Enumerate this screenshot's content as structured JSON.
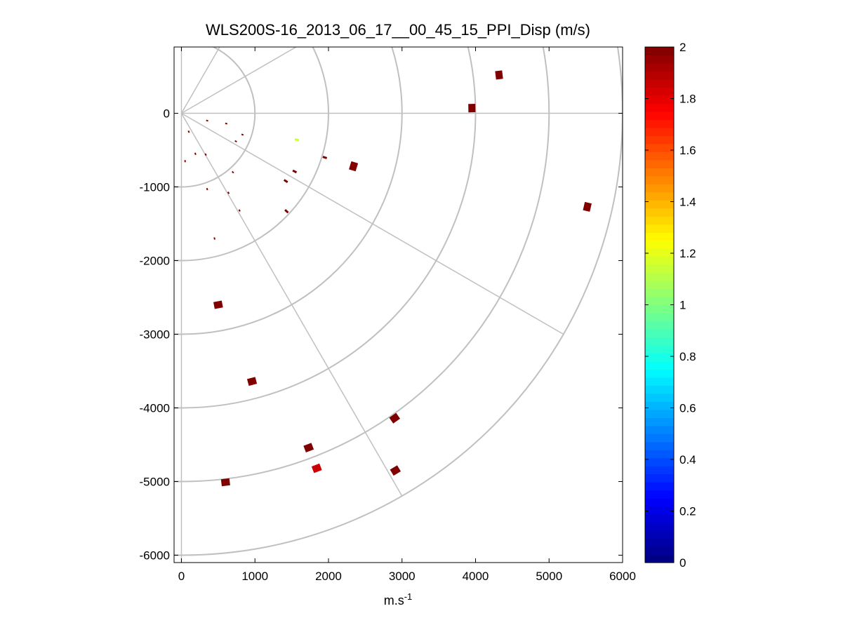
{
  "chart_data": {
    "type": "scatter",
    "title": "WLS200S-16_2013_06_17__00_45_15_PPI_Disp (m/s)",
    "xlabel": "m.s",
    "xlabel_superscript": "-1",
    "ylabel": "",
    "xlim": [
      -100,
      6000
    ],
    "ylim": [
      -6100,
      900
    ],
    "x_ticks": [
      0,
      1000,
      2000,
      3000,
      4000,
      5000,
      6000
    ],
    "x_tick_labels": [
      "0",
      "1000",
      "2000",
      "3000",
      "4000",
      "5000",
      "6000"
    ],
    "y_ticks": [
      0,
      -1000,
      -2000,
      -3000,
      -4000,
      -5000,
      -6000
    ],
    "y_tick_labels": [
      "0",
      "-1000",
      "-2000",
      "-3000",
      "-4000",
      "-5000",
      "-6000"
    ],
    "polar_grid": {
      "origin": [
        0,
        0
      ],
      "range_rings": [
        1000,
        2000,
        3000,
        4000,
        5000,
        6000
      ],
      "spokes_deg": [
        60,
        30,
        0,
        -30,
        -60
      ]
    },
    "colorbar": {
      "min": 0,
      "max": 2,
      "ticks": [
        0,
        0.2,
        0.4,
        0.6,
        0.8,
        1,
        1.2,
        1.4,
        1.6,
        1.8,
        2
      ],
      "tick_labels": [
        "0",
        "0.2",
        "0.4",
        "0.6",
        "0.8",
        "1",
        "1.2",
        "1.4",
        "1.6",
        "1.8",
        "2"
      ],
      "colormap": "jet",
      "position": "right"
    },
    "colors": {
      "grid": "#c0c0c0",
      "axes": "#000000",
      "background": "#ffffff"
    },
    "points": [
      {
        "x": 4320,
        "y": 520,
        "value": 2.0,
        "size": "large"
      },
      {
        "x": 3950,
        "y": 70,
        "value": 2.0,
        "size": "large"
      },
      {
        "x": 2340,
        "y": -720,
        "value": 2.0,
        "size": "large"
      },
      {
        "x": 1950,
        "y": -600,
        "value": 2.0,
        "size": "small"
      },
      {
        "x": 1570,
        "y": -360,
        "value": 1.15,
        "size": "small"
      },
      {
        "x": 1540,
        "y": -790,
        "value": 2.0,
        "size": "small"
      },
      {
        "x": 1420,
        "y": -920,
        "value": 2.0,
        "size": "small"
      },
      {
        "x": 1430,
        "y": -1330,
        "value": 2.0,
        "size": "small"
      },
      {
        "x": 5520,
        "y": -1270,
        "value": 2.0,
        "size": "large"
      },
      {
        "x": 830,
        "y": -290,
        "value": 2.0,
        "size": "tiny"
      },
      {
        "x": 740,
        "y": -380,
        "value": 2.0,
        "size": "tiny"
      },
      {
        "x": 610,
        "y": -140,
        "value": 1.95,
        "size": "tiny"
      },
      {
        "x": 350,
        "y": -100,
        "value": 2.0,
        "size": "tiny"
      },
      {
        "x": 100,
        "y": -250,
        "value": 2.0,
        "size": "tiny"
      },
      {
        "x": 330,
        "y": -560,
        "value": 2.0,
        "size": "tiny"
      },
      {
        "x": 190,
        "y": -550,
        "value": 2.0,
        "size": "tiny"
      },
      {
        "x": 50,
        "y": -650,
        "value": 1.95,
        "size": "tiny"
      },
      {
        "x": 700,
        "y": -800,
        "value": 2.0,
        "size": "tiny"
      },
      {
        "x": 640,
        "y": -1080,
        "value": 2.0,
        "size": "tiny"
      },
      {
        "x": 350,
        "y": -1030,
        "value": 2.0,
        "size": "tiny"
      },
      {
        "x": 790,
        "y": -1320,
        "value": 2.0,
        "size": "tiny"
      },
      {
        "x": 450,
        "y": -1700,
        "value": 2.0,
        "size": "tiny"
      },
      {
        "x": 500,
        "y": -2600,
        "value": 2.0,
        "size": "large"
      },
      {
        "x": 960,
        "y": -3640,
        "value": 2.0,
        "size": "large"
      },
      {
        "x": 2900,
        "y": -4140,
        "value": 2.0,
        "size": "large"
      },
      {
        "x": 1730,
        "y": -4540,
        "value": 2.0,
        "size": "large"
      },
      {
        "x": 1840,
        "y": -4820,
        "value": 1.85,
        "size": "large"
      },
      {
        "x": 2910,
        "y": -4850,
        "value": 2.0,
        "size": "large"
      },
      {
        "x": 600,
        "y": -5010,
        "value": 2.0,
        "size": "large"
      }
    ]
  }
}
